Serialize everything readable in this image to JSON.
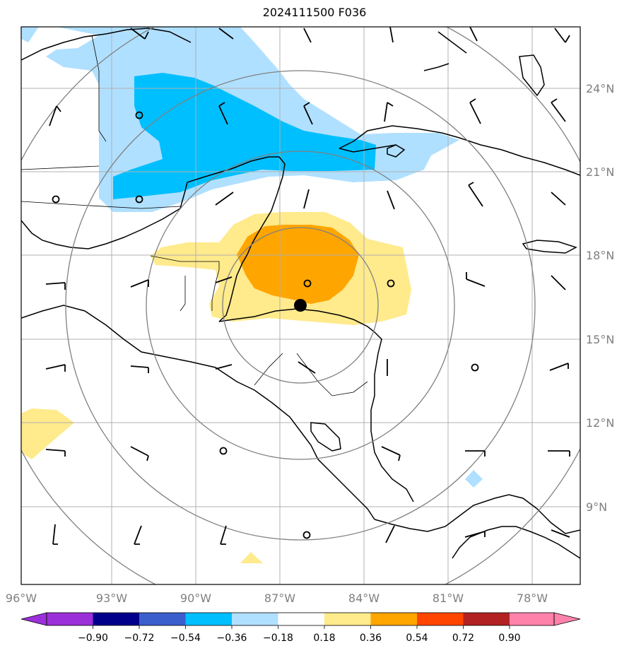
{
  "title": "2024111500 F036",
  "map": {
    "lon_labels": [
      "96°W",
      "93°W",
      "90°W",
      "87°W",
      "84°W",
      "81°W",
      "78°W"
    ],
    "lat_labels": [
      "24°N",
      "21°N",
      "18°N",
      "15°N",
      "12°N",
      "9°N"
    ],
    "storm_center_marker": "filled-black-dot"
  },
  "colorbar": {
    "ticks": [
      "−0.90",
      "−0.72",
      "−0.54",
      "−0.36",
      "−0.18",
      "0.18",
      "0.36",
      "0.54",
      "0.72",
      "0.90"
    ],
    "colors": [
      "#9b30d9",
      "#00008b",
      "#3a5fcd",
      "#00bfff",
      "#b0e0ff",
      "#ffffff",
      "#ffea8c",
      "#ffa500",
      "#ff4500",
      "#b22222",
      "#ff82ab"
    ],
    "extend": "both"
  },
  "colors": {
    "light_blue": "#b0e0ff",
    "medium_blue": "#00bfff",
    "light_yellow": "#ffea8c",
    "orange": "#ffa500",
    "grid": "#b0b0b0",
    "range_rings": "#808080"
  }
}
